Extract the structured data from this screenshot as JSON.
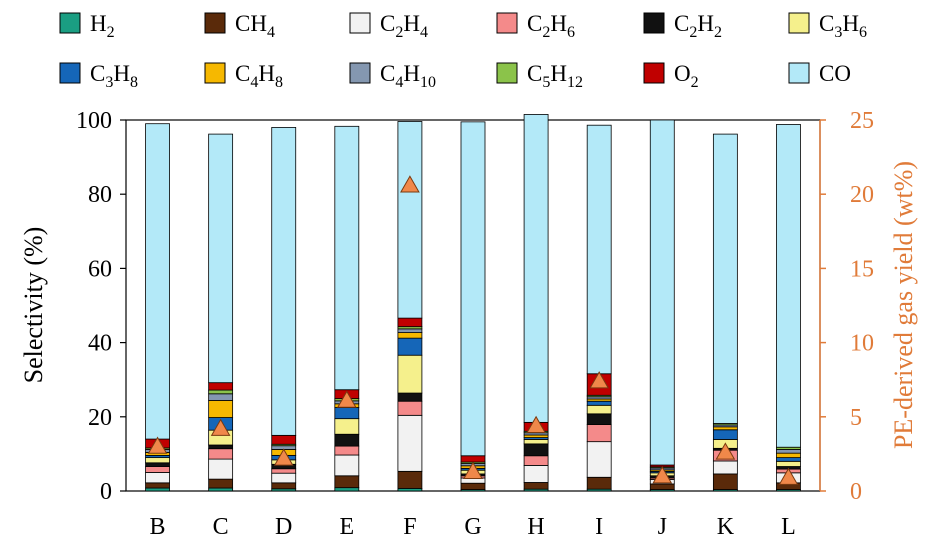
{
  "chart_data": {
    "type": "bar",
    "stacked": true,
    "categories": [
      "B",
      "C",
      "D",
      "E",
      "F",
      "G",
      "H",
      "I",
      "J",
      "K",
      "L"
    ],
    "ylabel": "Selectivity (%)",
    "ylim": [
      0,
      100
    ],
    "y_ticks": [
      0,
      20,
      40,
      60,
      80,
      100
    ],
    "y2label": "PE-derived gas yield (wt%)",
    "y2lim": [
      0,
      25
    ],
    "y2_ticks": [
      0,
      5,
      10,
      15,
      20,
      25
    ],
    "legend_position": "top",
    "series": [
      {
        "key": "H2",
        "base": "H",
        "sub": "2",
        "color": "#1a9e82",
        "values": [
          0.8,
          0.8,
          0.6,
          0.9,
          0.7,
          0.4,
          0.5,
          0.5,
          0.4,
          0.4,
          0.4
        ]
      },
      {
        "key": "CH4",
        "base": "CH",
        "sub": "4",
        "color": "#5a2a0a",
        "values": [
          1.4,
          2.4,
          1.6,
          3.2,
          4.6,
          1.7,
          1.8,
          3.2,
          1.5,
          4.2,
          1.8
        ]
      },
      {
        "key": "C2H4",
        "base": "C",
        "sub": "2",
        "base2": "H",
        "sub2": "4",
        "color": "#f2f2f2",
        "values": [
          2.8,
          5.4,
          2.6,
          5.6,
          15.1,
          1.4,
          4.6,
          9.6,
          1.2,
          3.5,
          2.7
        ]
      },
      {
        "key": "C2H6",
        "base": "C",
        "sub": "2",
        "base2": "H",
        "sub2": "6",
        "color": "#f48a8a",
        "values": [
          1.6,
          2.8,
          1.2,
          2.4,
          3.8,
          0.6,
          2.6,
          4.6,
          0.4,
          2.9,
          1.0
        ]
      },
      {
        "key": "C2H2",
        "base": "C",
        "sub": "2",
        "base2": "H",
        "sub2": "2",
        "color": "#111111",
        "values": [
          1.0,
          1.0,
          1.2,
          3.2,
          2.2,
          0.5,
          3.2,
          2.9,
          0.6,
          0.5,
          0.7
        ]
      },
      {
        "key": "C3H6",
        "base": "C",
        "sub": "3",
        "base2": "H",
        "sub2": "6",
        "color": "#f5f08c",
        "values": [
          1.4,
          4.0,
          1.2,
          4.2,
          10.2,
          1.0,
          1.2,
          2.3,
          0.8,
          2.4,
          1.4
        ]
      },
      {
        "key": "C3H8",
        "base": "C",
        "sub": "3",
        "base2": "H",
        "sub2": "8",
        "color": "#1566b8",
        "values": [
          0.6,
          3.4,
          1.2,
          3.0,
          4.6,
          0.5,
          0.5,
          1.1,
          0.4,
          2.6,
          1.0
        ]
      },
      {
        "key": "C4H8",
        "base": "C",
        "sub": "4",
        "base2": "H",
        "sub2": "8",
        "color": "#f6b800",
        "values": [
          0.8,
          4.6,
          1.6,
          1.0,
          1.5,
          0.7,
          0.7,
          0.6,
          0.4,
          0.8,
          1.2
        ]
      },
      {
        "key": "C4H10",
        "base": "C",
        "sub": "4",
        "base2": "H",
        "sub2": "10",
        "color": "#8497b0",
        "values": [
          0.8,
          1.8,
          1.0,
          0.8,
          1.0,
          0.6,
          0.6,
          0.6,
          0.5,
          0.5,
          1.0
        ]
      },
      {
        "key": "C5H12",
        "base": "C",
        "sub": "5",
        "base2": "H",
        "sub2": "12",
        "color": "#8bc34a",
        "values": [
          0.4,
          1.0,
          0.4,
          0.6,
          0.6,
          0.4,
          0.4,
          0.4,
          0.3,
          0.4,
          0.6
        ]
      },
      {
        "key": "O2",
        "base": "O",
        "sub": "2",
        "color": "#c00000",
        "values": [
          2.4,
          2.0,
          2.4,
          2.4,
          2.3,
          1.7,
          2.4,
          5.8,
          0.5,
          0.0,
          0.0
        ]
      },
      {
        "key": "CO",
        "base": "CO",
        "sub": "",
        "color": "#b3e9f8",
        "values": [
          85.0,
          67.0,
          83.0,
          71.0,
          53.0,
          90.0,
          83.0,
          67.0,
          93.0,
          78.0,
          87.0
        ]
      }
    ],
    "yield_series": {
      "axis": "right",
      "color": "#f0884a",
      "values": [
        3.0,
        4.2,
        2.2,
        6.1,
        20.6,
        1.3,
        4.4,
        7.4,
        1.0,
        2.6,
        0.9
      ]
    }
  }
}
